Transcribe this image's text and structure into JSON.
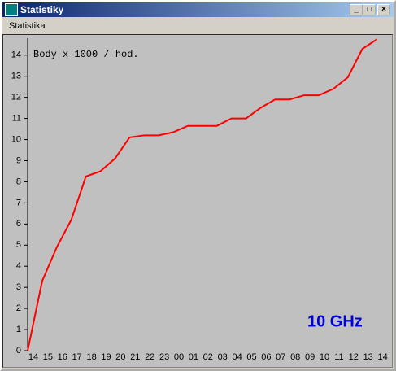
{
  "window": {
    "title": "Statistiky",
    "menu": [
      "Statistika"
    ]
  },
  "chart_data": {
    "type": "line",
    "annotations": [
      "Body x 1000 / hod.",
      "10 GHz"
    ],
    "categories": [
      "14",
      "15",
      "16",
      "17",
      "18",
      "19",
      "20",
      "21",
      "22",
      "23",
      "00",
      "01",
      "02",
      "03",
      "04",
      "05",
      "06",
      "07",
      "08",
      "09",
      "10",
      "11",
      "12",
      "13",
      "14"
    ],
    "series": [
      {
        "color": "#ff0000",
        "values": [
          0,
          3.3,
          4.9,
          6.2,
          8.25,
          8.5,
          9.1,
          10.1,
          10.2,
          10.2,
          10.35,
          10.65,
          10.65,
          10.65,
          11.0,
          11.0,
          11.5,
          11.9,
          11.9,
          12.1,
          12.1,
          12.4,
          12.95,
          14.3,
          14.75
        ]
      }
    ],
    "ylim": [
      0,
      14.8
    ],
    "yticks": [
      0,
      1,
      2,
      3,
      4,
      5,
      6,
      7,
      8,
      9,
      10,
      11,
      12,
      13,
      14
    ]
  }
}
